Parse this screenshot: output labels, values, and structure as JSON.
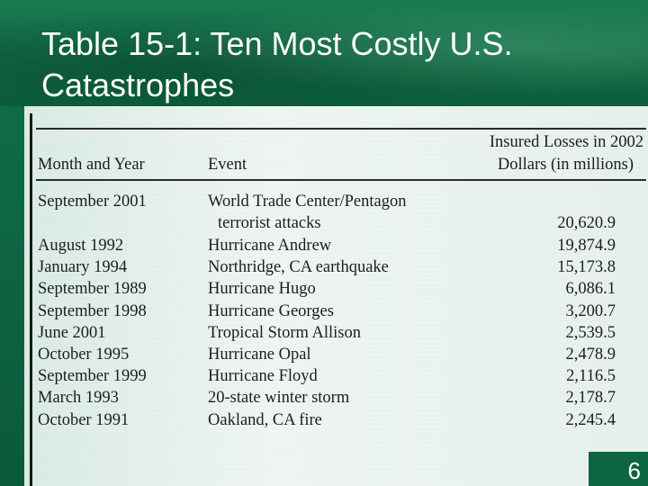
{
  "slide": {
    "title_line1": "Table 15-1: Ten Most Costly U.S.",
    "title_line2": "Catastrophes",
    "page_number": "6"
  },
  "table": {
    "headers": {
      "month_year": "Month and Year",
      "event": "Event",
      "losses_line1": "Insured Losses in 2002",
      "losses_line2": "Dollars (in millions)"
    },
    "rows": [
      {
        "month_year": "September 2001",
        "event": "World Trade Center/Pentagon",
        "event_cont": "terrorist attacks",
        "loss": "20,620.9"
      },
      {
        "month_year": "August 1992",
        "event": "Hurricane Andrew",
        "loss": "19,874.9"
      },
      {
        "month_year": "January 1994",
        "event": "Northridge, CA earthquake",
        "loss": "15,173.8"
      },
      {
        "month_year": "September 1989",
        "event": "Hurricane Hugo",
        "loss": "6,086.1"
      },
      {
        "month_year": "September 1998",
        "event": "Hurricane Georges",
        "loss": "3,200.7"
      },
      {
        "month_year": "June 2001",
        "event": "Tropical Storm Allison",
        "loss": "2,539.5"
      },
      {
        "month_year": "October 1995",
        "event": "Hurricane Opal",
        "loss": "2,478.9"
      },
      {
        "month_year": "September 1999",
        "event": "Hurricane Floyd",
        "loss": "2,116.5"
      },
      {
        "month_year": "March 1993",
        "event": "20-state winter storm",
        "loss": "2,178.7"
      },
      {
        "month_year": "October 1991",
        "event": "Oakland, CA fire",
        "loss": "2,245.4"
      }
    ]
  },
  "colors": {
    "header_green": "#11704b",
    "panel_bg": "#edf3f1",
    "text": "#1e1e1e"
  }
}
